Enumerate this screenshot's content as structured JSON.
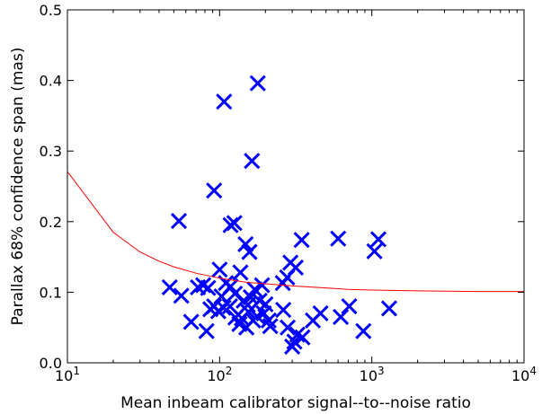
{
  "chart_data": {
    "type": "scatter",
    "title": "",
    "xlabel": "Mean inbeam calibrator signal--to--noise ratio",
    "ylabel": "Parallax 68% confidence span (mas)",
    "xscale": "log",
    "xlim": [
      10,
      10000
    ],
    "ylim": [
      0.0,
      0.5
    ],
    "grid": false,
    "legend": "none",
    "x_ticks": [
      {
        "value": 10,
        "base": "10",
        "exp": "1"
      },
      {
        "value": 100,
        "base": "10",
        "exp": "2"
      },
      {
        "value": 1000,
        "base": "10",
        "exp": "3"
      },
      {
        "value": 10000,
        "base": "10",
        "exp": "4"
      }
    ],
    "y_ticks": [
      {
        "value": 0.0,
        "label": "0.0"
      },
      {
        "value": 0.1,
        "label": "0.1"
      },
      {
        "value": 0.2,
        "label": "0.2"
      },
      {
        "value": 0.3,
        "label": "0.3"
      },
      {
        "value": 0.4,
        "label": "0.4"
      },
      {
        "value": 0.5,
        "label": "0.5"
      }
    ],
    "series": [
      {
        "type": "scatter",
        "marker": "x",
        "color": "#0000ff",
        "points": [
          [
            107,
            0.37
          ],
          [
            178,
            0.396
          ],
          [
            163,
            0.286
          ],
          [
            92,
            0.244
          ],
          [
            54,
            0.201
          ],
          [
            125,
            0.198
          ],
          [
            118,
            0.195
          ],
          [
            148,
            0.168
          ],
          [
            157,
            0.157
          ],
          [
            346,
            0.174
          ],
          [
            601,
            0.176
          ],
          [
            1105,
            0.175
          ],
          [
            1040,
            0.158
          ],
          [
            292,
            0.142
          ],
          [
            316,
            0.135
          ],
          [
            100,
            0.132
          ],
          [
            137,
            0.128
          ],
          [
            278,
            0.121
          ],
          [
            260,
            0.113
          ],
          [
            47,
            0.107
          ],
          [
            72,
            0.107
          ],
          [
            78,
            0.11
          ],
          [
            84,
            0.106
          ],
          [
            110,
            0.113
          ],
          [
            118,
            0.108
          ],
          [
            170,
            0.104
          ],
          [
            190,
            0.11
          ],
          [
            56,
            0.095
          ],
          [
            103,
            0.094
          ],
          [
            126,
            0.098
          ],
          [
            160,
            0.093
          ],
          [
            144,
            0.088
          ],
          [
            92,
            0.08
          ],
          [
            117,
            0.08
          ],
          [
            183,
            0.088
          ],
          [
            153,
            0.082
          ],
          [
            200,
            0.083
          ],
          [
            65,
            0.058
          ],
          [
            82,
            0.045
          ],
          [
            87,
            0.076
          ],
          [
            98,
            0.073
          ],
          [
            106,
            0.078
          ],
          [
            127,
            0.064
          ],
          [
            135,
            0.055
          ],
          [
            140,
            0.063
          ],
          [
            155,
            0.072
          ],
          [
            166,
            0.06
          ],
          [
            176,
            0.066
          ],
          [
            195,
            0.07
          ],
          [
            150,
            0.05
          ],
          [
            210,
            0.06
          ],
          [
            215,
            0.052
          ],
          [
            262,
            0.075
          ],
          [
            280,
            0.05
          ],
          [
            300,
            0.023
          ],
          [
            324,
            0.04
          ],
          [
            350,
            0.036
          ],
          [
            410,
            0.06
          ],
          [
            460,
            0.07
          ],
          [
            625,
            0.065
          ],
          [
            710,
            0.08
          ],
          [
            880,
            0.045
          ],
          [
            1300,
            0.077
          ],
          [
            310,
            0.03
          ]
        ]
      },
      {
        "type": "line",
        "color": "#ff0000",
        "x": [
          10,
          20,
          30,
          40,
          50,
          70,
          100,
          150,
          200,
          300,
          500,
          700,
          1000,
          2000,
          5000,
          10000
        ],
        "y": [
          0.271,
          0.185,
          0.157,
          0.144,
          0.136,
          0.127,
          0.12,
          0.114,
          0.112,
          0.109,
          0.106,
          0.104,
          0.103,
          0.102,
          0.101,
          0.101
        ]
      }
    ]
  }
}
